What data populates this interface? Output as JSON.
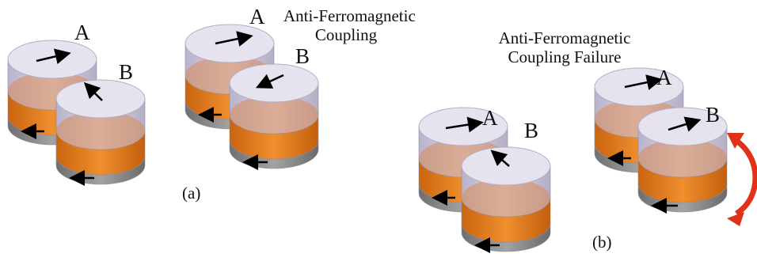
{
  "title_a": [
    "Anti-Ferromagnetic",
    "Coupling"
  ],
  "title_b": [
    "Anti-Ferromagnetic",
    "Coupling Failure"
  ],
  "label_a": "A",
  "label_b": "B",
  "sub_a": "(a)",
  "sub_b": "(b)",
  "colors": {
    "free_layer": "#c9c3d9",
    "pinned_layer": "#e07a1e",
    "base_layer": "#8a8a8a",
    "arrow": "#000000",
    "rotation_arrow": "#e0321a"
  }
}
